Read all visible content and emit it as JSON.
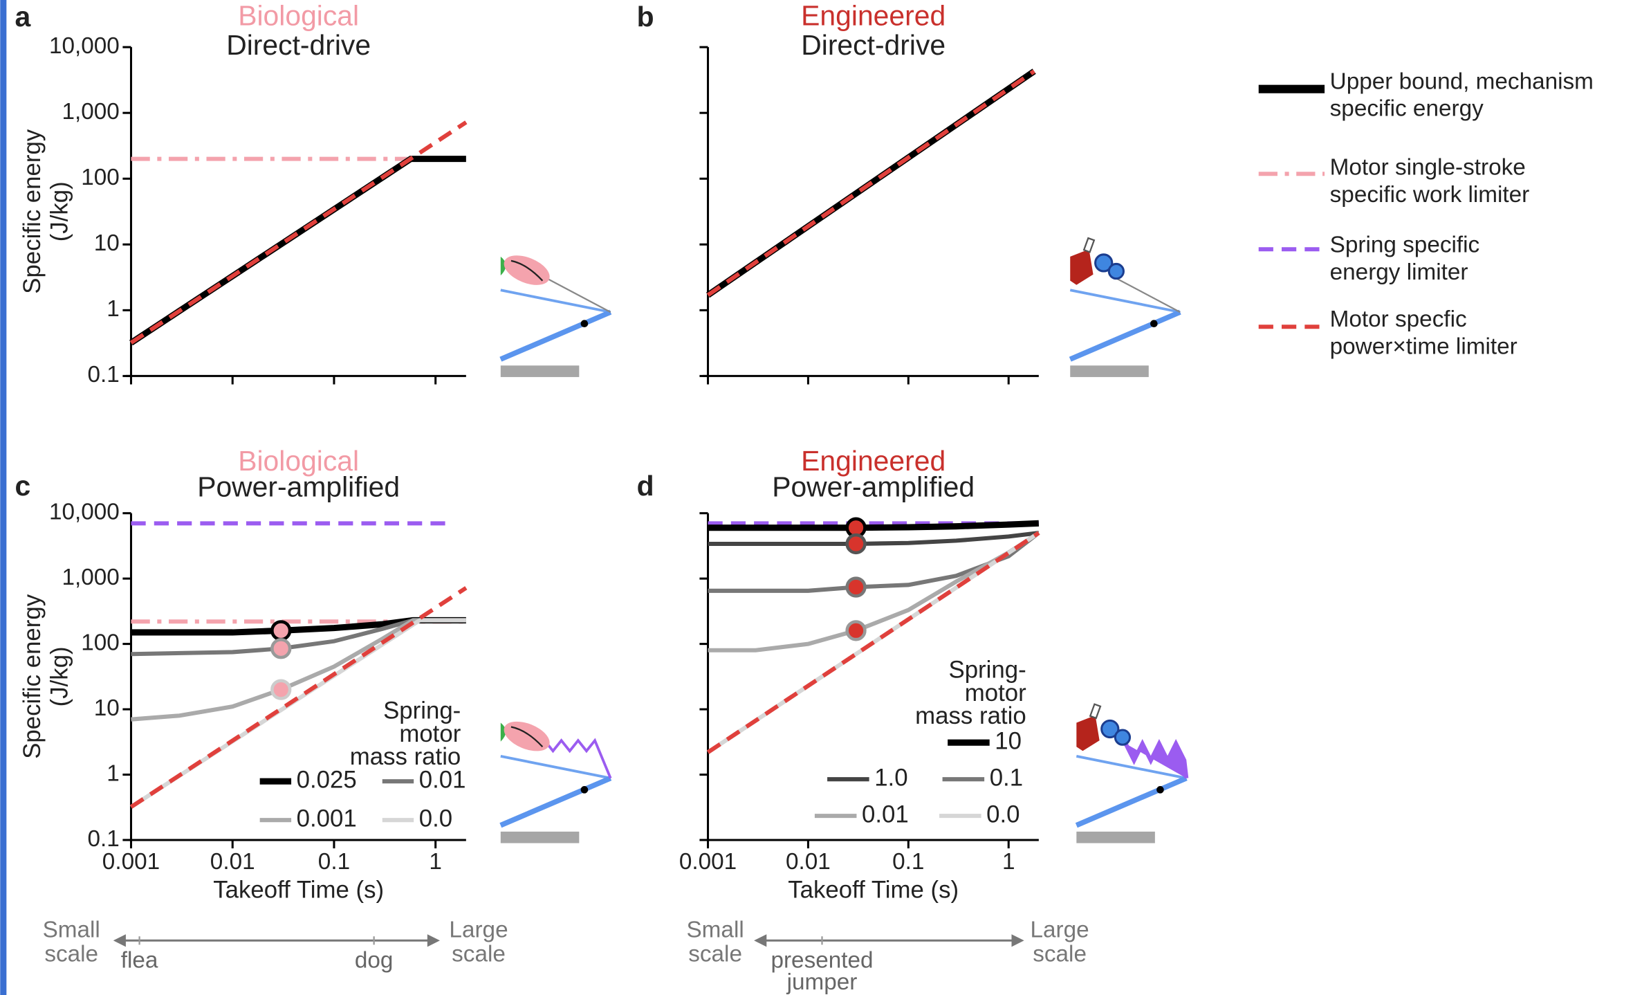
{
  "chart_data": [
    {
      "type": "line",
      "label": "a",
      "title": "Biological",
      "title_color": "#f29aa5",
      "subtitle": "Direct-drive",
      "ylabel": [
        "Specific energy",
        "(J/kg)"
      ],
      "log_x": true,
      "log_y": true,
      "xlim": [
        0.001,
        2
      ],
      "ylim": [
        0.1,
        10000
      ],
      "xticks": [
        0.001,
        0.01,
        0.1,
        1
      ],
      "yticks": [
        0.1,
        1,
        10,
        100,
        {
          "value": 1000,
          "label": "1,000"
        },
        {
          "value": 10000,
          "label": "10,000"
        }
      ],
      "show_xtick_labels": false,
      "show_ytick_labels": true,
      "series": [
        {
          "color": "#f4a3ad",
          "style": "dashdot",
          "width": 4,
          "x": [
            0.001,
            2
          ],
          "values": [
            200,
            200
          ]
        },
        {
          "color": "#000000",
          "style": "solid",
          "width": 6,
          "x": [
            0.001,
            0.57,
            2
          ],
          "values": [
            0.32,
            200,
            200
          ]
        },
        {
          "color": "#e0403c",
          "style": "dashed",
          "width": 4,
          "x": [
            0.001,
            2
          ],
          "values": [
            0.32,
            720
          ]
        }
      ]
    },
    {
      "type": "line",
      "label": "b",
      "title": "Engineered",
      "title_color": "#c9302c",
      "subtitle": "Direct-drive",
      "log_x": true,
      "log_y": true,
      "xlim": [
        0.001,
        2
      ],
      "ylim": [
        0.1,
        10000
      ],
      "xticks": [
        0.001,
        0.01,
        0.1,
        1
      ],
      "yticks": [
        0.1,
        1,
        10,
        100,
        1000,
        10000
      ],
      "show_xtick_labels": false,
      "show_ytick_labels": false,
      "series": [
        {
          "color": "#000000",
          "style": "solid",
          "width": 6,
          "x": [
            0.001,
            1.8
          ],
          "values": [
            1.7,
            4300
          ]
        },
        {
          "color": "#e0403c",
          "style": "dashed",
          "width": 4,
          "x": [
            0.001,
            1.8
          ],
          "values": [
            1.7,
            4300
          ]
        }
      ]
    },
    {
      "type": "line",
      "label": "c",
      "title": "Biological",
      "title_color": "#f29aa5",
      "subtitle": "Power-amplified",
      "ylabel": [
        "Specific energy",
        "(J/kg)"
      ],
      "xlabel": "Takeoff Time (s)",
      "log_x": true,
      "log_y": true,
      "xlim": [
        0.001,
        2
      ],
      "ylim": [
        0.1,
        10000
      ],
      "xticks": [
        0.001,
        0.01,
        0.1,
        1
      ],
      "yticks": [
        0.1,
        1,
        10,
        100,
        {
          "value": 1000,
          "label": "1,000"
        },
        {
          "value": 10000,
          "label": "10,000"
        }
      ],
      "show_xtick_labels": true,
      "show_ytick_labels": true,
      "legend_title": [
        "Spring-",
        "motor",
        "mass ratio"
      ],
      "series": [
        {
          "color": "#9b5cf0",
          "style": "dashed",
          "width": 4,
          "x": [
            0.001,
            1.3
          ],
          "values": [
            7000,
            7000
          ]
        },
        {
          "color": "#f4a3ad",
          "style": "dashdot",
          "width": 4,
          "x": [
            0.001,
            2
          ],
          "values": [
            220,
            220
          ]
        },
        {
          "name": "0.025",
          "color": "#000000",
          "style": "solid",
          "width": 6,
          "x": [
            0.001,
            0.01,
            0.03,
            0.1,
            0.3,
            0.6,
            2
          ],
          "values": [
            150,
            150,
            160,
            175,
            200,
            230,
            230
          ]
        },
        {
          "name": "0.01",
          "color": "#777777",
          "style": "solid",
          "width": 4,
          "x": [
            0.001,
            0.01,
            0.03,
            0.1,
            0.3,
            0.6,
            2
          ],
          "values": [
            70,
            75,
            85,
            110,
            170,
            230,
            230
          ]
        },
        {
          "name": "0.001",
          "color": "#aaaaaa",
          "style": "solid",
          "width": 4,
          "x": [
            0.001,
            0.003,
            0.01,
            0.03,
            0.1,
            0.3,
            0.6,
            2
          ],
          "values": [
            7,
            8,
            11,
            20,
            45,
            120,
            230,
            230
          ]
        },
        {
          "name": "0.0",
          "color": "#d6d6d6",
          "style": "solid",
          "width": 4,
          "x": [
            0.001,
            0.7,
            2
          ],
          "values": [
            0.32,
            230,
            230
          ]
        },
        {
          "color": "#e0403c",
          "style": "dashed",
          "width": 4,
          "x": [
            0.001,
            2
          ],
          "values": [
            0.32,
            720
          ]
        }
      ],
      "markers": {
        "x": [
          0.03,
          0.03,
          0.03
        ],
        "y": [
          160,
          85,
          20
        ],
        "fill": "#f4a3ad",
        "edges": [
          "#000000",
          "#999999",
          "#cccccc"
        ]
      },
      "scale_left": [
        "Small",
        "scale"
      ],
      "scale_right": [
        "Large",
        "scale"
      ],
      "scale_examples": [
        [
          "flea"
        ],
        [
          "dog"
        ]
      ]
    },
    {
      "type": "line",
      "label": "d",
      "title": "Engineered",
      "title_color": "#c9302c",
      "subtitle": "Power-amplified",
      "xlabel": "Takeoff Time (s)",
      "log_x": true,
      "log_y": true,
      "xlim": [
        0.001,
        2
      ],
      "ylim": [
        0.1,
        10000
      ],
      "xticks": [
        0.001,
        0.01,
        0.1,
        1
      ],
      "yticks": [
        0.1,
        1,
        10,
        100,
        1000,
        10000
      ],
      "show_xtick_labels": true,
      "show_ytick_labels": false,
      "legend_title": [
        "Spring-",
        "motor",
        "mass ratio"
      ],
      "series": [
        {
          "color": "#9b5cf0",
          "style": "dashed",
          "width": 4,
          "x": [
            0.001,
            2
          ],
          "values": [
            7000,
            7000
          ]
        },
        {
          "name": "10",
          "color": "#000000",
          "style": "solid",
          "width": 6,
          "x": [
            0.001,
            0.01,
            0.03,
            0.1,
            0.3,
            1,
            2
          ],
          "values": [
            6000,
            6000,
            6000,
            6100,
            6300,
            6700,
            7000
          ]
        },
        {
          "name": "1.0",
          "color": "#444444",
          "style": "solid",
          "width": 4,
          "x": [
            0.001,
            0.01,
            0.03,
            0.1,
            0.3,
            1,
            2
          ],
          "values": [
            3400,
            3400,
            3400,
            3500,
            3800,
            4400,
            5000
          ]
        },
        {
          "name": "0.1",
          "color": "#777777",
          "style": "solid",
          "width": 4,
          "x": [
            0.001,
            0.01,
            0.03,
            0.1,
            0.3,
            1,
            2
          ],
          "values": [
            650,
            650,
            740,
            800,
            1100,
            2200,
            5000
          ]
        },
        {
          "name": "0.01",
          "color": "#aaaaaa",
          "style": "solid",
          "width": 4,
          "x": [
            0.001,
            0.003,
            0.01,
            0.03,
            0.1,
            0.3,
            1,
            2
          ],
          "values": [
            80,
            80,
            100,
            160,
            330,
            900,
            2500,
            5000
          ]
        },
        {
          "name": "0.0",
          "color": "#d6d6d6",
          "style": "solid",
          "width": 4,
          "x": [
            0.001,
            2
          ],
          "values": [
            2.2,
            5000
          ]
        },
        {
          "color": "#e0403c",
          "style": "dashed",
          "width": 4,
          "x": [
            0.001,
            2
          ],
          "values": [
            2.2,
            5000
          ]
        }
      ],
      "markers": {
        "x": [
          0.03,
          0.03,
          0.03,
          0.03
        ],
        "y": [
          6000,
          3400,
          740,
          160
        ],
        "fill": "#d8342c",
        "edges": [
          "#000000",
          "#555555",
          "#777777",
          "#999999"
        ]
      },
      "scale_left": [
        "Small",
        "scale"
      ],
      "scale_right": [
        "Large",
        "scale"
      ],
      "scale_examples": [
        [
          "presented",
          "jumper"
        ]
      ]
    }
  ],
  "legend": {
    "entries": [
      {
        "label": [
          "Upper bound, mechanism",
          "specific energy"
        ],
        "color": "#000000",
        "style": "solid",
        "width": 8
      },
      {
        "label": [
          "Motor single-stroke",
          "specific work limiter"
        ],
        "color": "#f4a3ad",
        "style": "dashdot",
        "width": 4
      },
      {
        "label": [
          "Spring specific",
          "energy limiter"
        ],
        "color": "#9b5cf0",
        "style": "dashed",
        "width": 4
      },
      {
        "label": [
          "Motor specfic",
          "power×time limiter"
        ],
        "color": "#e0403c",
        "style": "dashed",
        "width": 4
      }
    ]
  }
}
